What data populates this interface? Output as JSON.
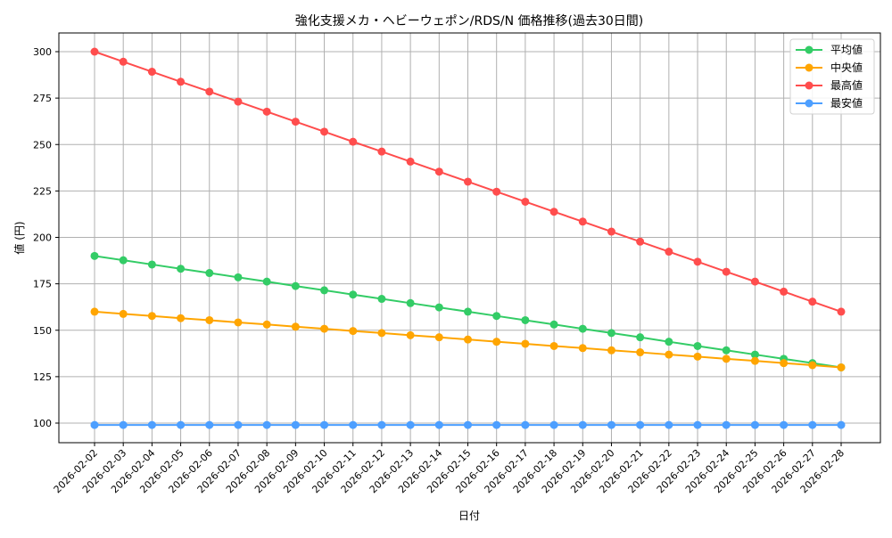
{
  "chart_data": {
    "type": "line",
    "title": "強化支援メカ・ヘビーウェポン/RDS/N 価格推移(過去30日間)",
    "xlabel": "日付",
    "ylabel": "値 (円)",
    "ylim": [
      89,
      310
    ],
    "yticks": [
      100,
      125,
      150,
      175,
      200,
      225,
      250,
      275,
      300
    ],
    "grid": true,
    "legend_position": "upper right",
    "x": [
      "2026-02-02",
      "2026-02-03",
      "2026-02-04",
      "2026-02-05",
      "2026-02-06",
      "2026-02-07",
      "2026-02-08",
      "2026-02-09",
      "2026-02-10",
      "2026-02-11",
      "2026-02-12",
      "2026-02-13",
      "2026-02-14",
      "2026-02-15",
      "2026-02-16",
      "2026-02-17",
      "2026-02-18",
      "2026-02-19",
      "2026-02-20",
      "2026-02-21",
      "2026-02-22",
      "2026-02-23",
      "2026-02-24",
      "2026-02-25",
      "2026-02-26",
      "2026-02-27",
      "2026-02-28"
    ],
    "series": [
      {
        "name": "平均値",
        "color": "#33cc66",
        "values": [
          190,
          187.7,
          185.4,
          183.1,
          180.8,
          178.5,
          176.2,
          173.8,
          171.5,
          169.2,
          166.9,
          164.6,
          162.3,
          160,
          157.7,
          155.4,
          153.1,
          150.8,
          148.5,
          146.2,
          143.8,
          141.5,
          139.2,
          136.9,
          134.6,
          132.3,
          130
        ]
      },
      {
        "name": "中央値",
        "color": "#ffa500",
        "values": [
          160,
          158.8,
          157.7,
          156.5,
          155.4,
          154.2,
          153.1,
          151.9,
          150.8,
          149.6,
          148.5,
          147.3,
          146.2,
          145,
          143.8,
          142.7,
          141.5,
          140.4,
          139.2,
          138.1,
          136.9,
          135.8,
          134.6,
          133.5,
          132.3,
          131.2,
          130
        ]
      },
      {
        "name": "最高値",
        "color": "#ff4d4d",
        "values": [
          300,
          294.6,
          289.2,
          283.8,
          278.5,
          273.1,
          267.7,
          262.3,
          256.9,
          251.5,
          246.2,
          240.8,
          235.4,
          230,
          224.6,
          219.2,
          213.8,
          208.5,
          203.1,
          197.7,
          192.3,
          186.9,
          181.5,
          176.2,
          170.8,
          165.4,
          160
        ]
      },
      {
        "name": "最安値",
        "color": "#4d9fff",
        "values": [
          99,
          99,
          99,
          99,
          99,
          99,
          99,
          99,
          99,
          99,
          99,
          99,
          99,
          99,
          99,
          99,
          99,
          99,
          99,
          99,
          99,
          99,
          99,
          99,
          99,
          99,
          99
        ]
      }
    ]
  }
}
